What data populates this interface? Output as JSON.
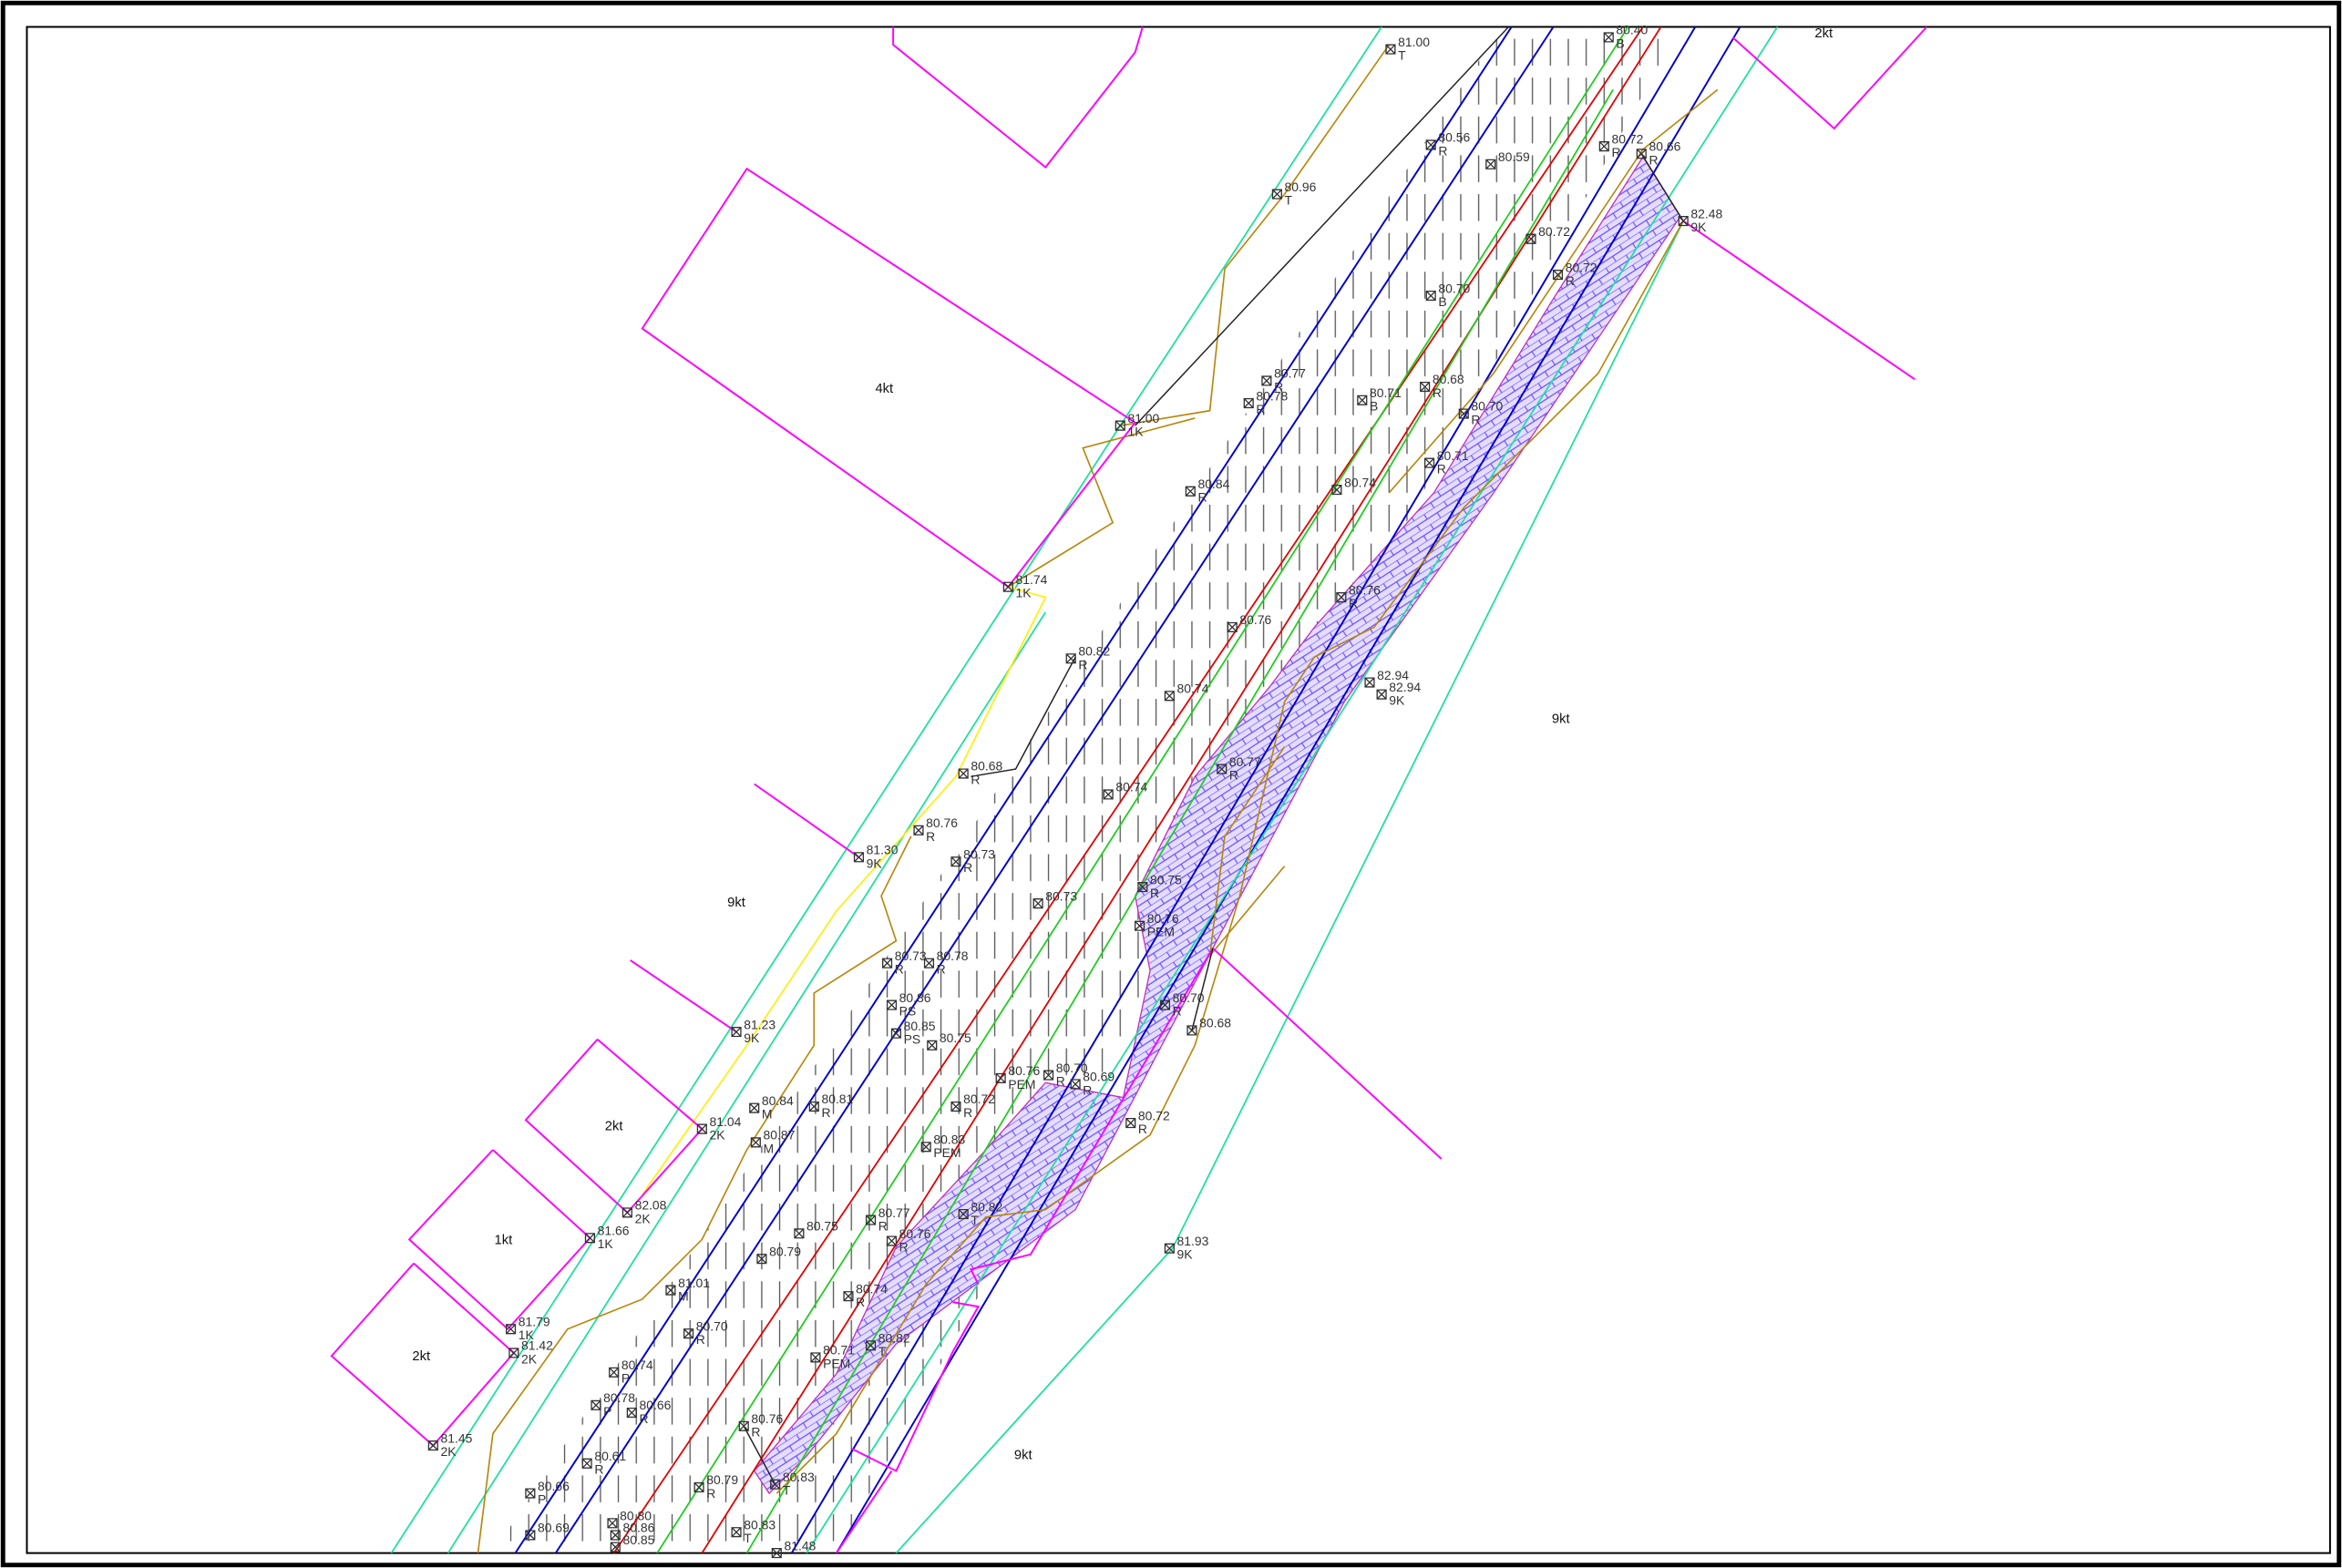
{
  "parcels": [
    {
      "label": "4kt"
    },
    {
      "label": "9kt"
    },
    {
      "label": "9kt"
    },
    {
      "label": "2kt"
    },
    {
      "label": "1kt"
    },
    {
      "label": "2kt"
    },
    {
      "label": "9kt"
    },
    {
      "label": "2kt"
    }
  ],
  "points": [
    {
      "elevation": "81.00",
      "code": "T"
    },
    {
      "elevation": "80.40",
      "code": "B"
    },
    {
      "elevation": "80.56",
      "code": "R"
    },
    {
      "elevation": "80.59"
    },
    {
      "elevation": "80.72",
      "code": "R"
    },
    {
      "elevation": "80.66",
      "code": "R"
    },
    {
      "elevation": "82.48",
      "code": "9K"
    },
    {
      "elevation": "80.96",
      "code": "T"
    },
    {
      "elevation": "80.72"
    },
    {
      "elevation": "80.72",
      "code": "R"
    },
    {
      "elevation": "80.70",
      "code": "B"
    },
    {
      "elevation": "80.77",
      "code": "R"
    },
    {
      "elevation": "80.78",
      "code": "R"
    },
    {
      "elevation": "80.71",
      "code": "B"
    },
    {
      "elevation": "80.68",
      "code": "R"
    },
    {
      "elevation": "80.70",
      "code": "R"
    },
    {
      "elevation": "81.00",
      "code": "1K"
    },
    {
      "elevation": "80.71",
      "code": "R"
    },
    {
      "elevation": "80.74"
    },
    {
      "elevation": "80.84",
      "code": "R"
    },
    {
      "elevation": "81.74",
      "code": "1K"
    },
    {
      "elevation": "80.76",
      "code": "R"
    },
    {
      "elevation": "80.76"
    },
    {
      "elevation": "82.94"
    },
    {
      "elevation": "82.94",
      "code": "9K"
    },
    {
      "elevation": "80.82",
      "code": "R"
    },
    {
      "elevation": "80.74"
    },
    {
      "elevation": "80.68",
      "code": "R"
    },
    {
      "elevation": "80.77",
      "code": "R"
    },
    {
      "elevation": "80.74"
    },
    {
      "elevation": "80.76",
      "code": "R"
    },
    {
      "elevation": "80.73",
      "code": "R"
    },
    {
      "elevation": "81.30",
      "code": "9K"
    },
    {
      "elevation": "80.73"
    },
    {
      "elevation": "80.75",
      "code": "R"
    },
    {
      "elevation": "80.76",
      "code": "PEM"
    },
    {
      "elevation": "80.73",
      "code": "R"
    },
    {
      "elevation": "80.78",
      "code": "R"
    },
    {
      "elevation": "80.86",
      "code": "PS"
    },
    {
      "elevation": "80.85",
      "code": "PS"
    },
    {
      "elevation": "80.75"
    },
    {
      "elevation": "80.70",
      "code": "R"
    },
    {
      "elevation": "80.68"
    },
    {
      "elevation": "81.23",
      "code": "9K"
    },
    {
      "elevation": "80.76",
      "code": "PEM"
    },
    {
      "elevation": "80.70",
      "code": "R"
    },
    {
      "elevation": "80.69",
      "code": "R"
    },
    {
      "elevation": "80.72",
      "code": "R"
    },
    {
      "elevation": "80.84",
      "code": "M"
    },
    {
      "elevation": "80.81",
      "code": "R"
    },
    {
      "elevation": "80.72",
      "code": "R"
    },
    {
      "elevation": "81.04",
      "code": "2K"
    },
    {
      "elevation": "80.87",
      "code": "M"
    },
    {
      "elevation": "80.83",
      "code": "PEM"
    },
    {
      "elevation": "82.08",
      "code": "2K"
    },
    {
      "elevation": "81.66",
      "code": "1K"
    },
    {
      "elevation": "80.82",
      "code": "T"
    },
    {
      "elevation": "80.77",
      "code": "R"
    },
    {
      "elevation": "80.76",
      "code": "R"
    },
    {
      "elevation": "80.75"
    },
    {
      "elevation": "80.79"
    },
    {
      "elevation": "81.93",
      "code": "9K"
    },
    {
      "elevation": "81.01",
      "code": "M"
    },
    {
      "elevation": "80.74",
      "code": "R"
    },
    {
      "elevation": "80.70",
      "code": "R"
    },
    {
      "elevation": "81.79",
      "code": "1K"
    },
    {
      "elevation": "81.42",
      "code": "2K"
    },
    {
      "elevation": "80.71",
      "code": "PEM"
    },
    {
      "elevation": "80.82",
      "code": "T"
    },
    {
      "elevation": "80.74",
      "code": "P"
    },
    {
      "elevation": "80.78",
      "code": "P"
    },
    {
      "elevation": "80.66",
      "code": "R"
    },
    {
      "elevation": "80.76",
      "code": "R"
    },
    {
      "elevation": "81.45",
      "code": "2K"
    },
    {
      "elevation": "80.61",
      "code": "R"
    },
    {
      "elevation": "80.66",
      "code": "P"
    },
    {
      "elevation": "80.79",
      "code": "R"
    },
    {
      "elevation": "80.83",
      "code": "T"
    },
    {
      "elevation": "80.83",
      "code": "T"
    },
    {
      "elevation": "80.80"
    },
    {
      "elevation": "80.86"
    },
    {
      "elevation": "80.85"
    },
    {
      "elevation": "80.69"
    },
    {
      "elevation": "81.48"
    }
  ]
}
